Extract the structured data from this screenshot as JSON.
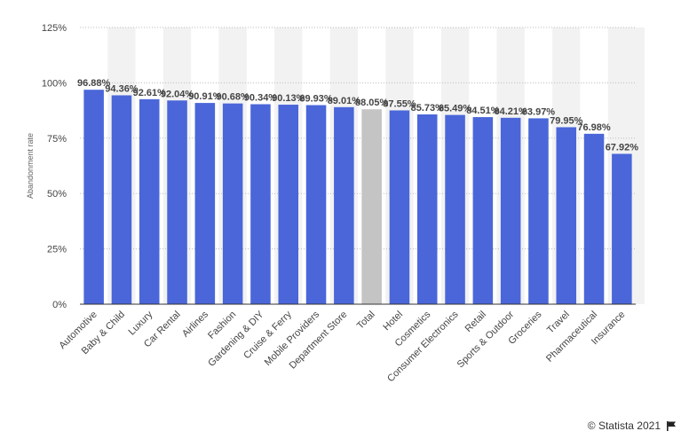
{
  "credit": {
    "text": "© Statista 2021",
    "icon": "flag-icon"
  },
  "chart_data": {
    "type": "bar",
    "title": "",
    "xlabel": "",
    "ylabel": "Abandonment rate",
    "ylim": [
      0,
      125
    ],
    "yticks": [
      0,
      25,
      50,
      75,
      100,
      125
    ],
    "ytick_labels": [
      "0%",
      "25%",
      "50%",
      "75%",
      "100%",
      "125%"
    ],
    "grid": true,
    "legend": "none",
    "categories": [
      "Automotive",
      "Baby & Child",
      "Luxury",
      "Car Rental",
      "Airlines",
      "Fashion",
      "Gardening & DIY",
      "Cruise & Ferry",
      "Mobile Providers",
      "Department Store",
      "Total",
      "Hotel",
      "Cosmetics",
      "Consumer Electronics",
      "Retail",
      "Sports & Outdoor",
      "Groceries",
      "Travel",
      "Pharmaceutical",
      "Insurance"
    ],
    "values": [
      96.88,
      94.36,
      92.61,
      92.04,
      90.91,
      90.68,
      90.34,
      90.13,
      89.93,
      89.01,
      88.05,
      87.55,
      85.73,
      85.49,
      84.51,
      84.21,
      83.97,
      79.95,
      76.98,
      67.92
    ],
    "value_labels": [
      "96.88%",
      "94.36%",
      "92.61%",
      "92.04%",
      "90.91%",
      "90.68%",
      "90.34%",
      "90.13%",
      "89.93%",
      "89.01%",
      "88.05%",
      "87.55%",
      "85.73%",
      "85.49%",
      "84.51%",
      "84.21%",
      "83.97%",
      "79.95%",
      "76.98%",
      "67.92%"
    ],
    "highlight_category": "Total",
    "colors": {
      "bar": "#4a66d9",
      "highlight": "#c4c4c4",
      "grid": "#bbbbbb",
      "axis": "#333333",
      "band": "#f2f2f2",
      "tick_text": "#444444",
      "value_text": "#444444"
    }
  }
}
